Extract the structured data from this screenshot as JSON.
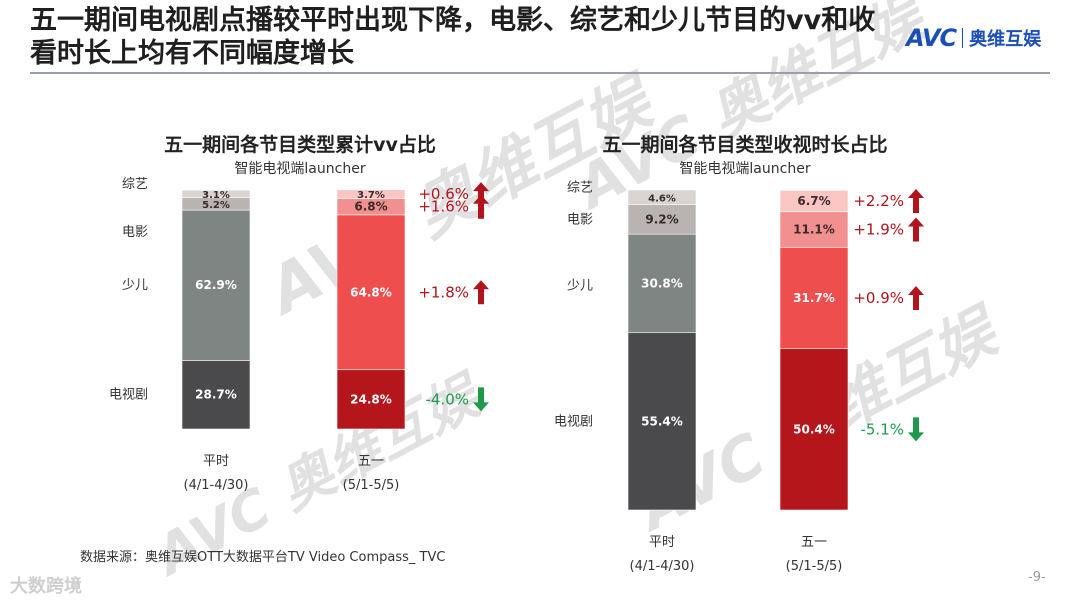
{
  "header": {
    "title_line1": "五一期间电视剧点播较平时出现下降，电影、综艺和少儿节目的vv和收",
    "title_line2": "看时长上均有不同幅度增长",
    "logo_mark": "AVC",
    "logo_text": "奥维互娱"
  },
  "watermark_text": "AVC 奥维互娱",
  "source": "数据来源：奥维互娱OTT大数据平台TV Video Compass_ TVC",
  "footer_brand": "大数跨境",
  "page_number": "-9-",
  "colors": {
    "baseline": {
      "电视剧": "#4a4a4c",
      "少儿": "#7f8583",
      "电影": "#b9b4b2",
      "综艺": "#d9d4d2"
    },
    "holiday": {
      "电视剧": "#b5161b",
      "少儿": "#ee4e4e",
      "电影": "#f1908f",
      "综艺": "#f9c6c4"
    },
    "up": "#b0141c",
    "down": "#1f9a4b"
  },
  "chart_data": [
    {
      "type": "bar",
      "stacked": true,
      "title": "五一期间各节目类型累计vv占比",
      "subtitle": "智能电视端launcher",
      "categories": [
        "平时",
        "五一"
      ],
      "category_sublabels": [
        "(4/1-4/30)",
        "(5/1-5/5)"
      ],
      "series": [
        {
          "name": "电视剧",
          "values": [
            28.7,
            24.8
          ],
          "labels": [
            "28.7%",
            "24.8%"
          ],
          "change": "-4.0%",
          "direction": "down"
        },
        {
          "name": "少儿",
          "values": [
            62.9,
            64.8
          ],
          "labels": [
            "62.9%",
            "64.8%"
          ],
          "change": "+1.8%",
          "direction": "up"
        },
        {
          "name": "电影",
          "values": [
            5.2,
            6.8
          ],
          "labels": [
            "5.2%",
            "6.8%"
          ],
          "change": "+1.6%",
          "direction": "up"
        },
        {
          "name": "综艺",
          "values": [
            3.1,
            3.7
          ],
          "labels": [
            "3.1%",
            "3.7%"
          ],
          "change": "+0.6%",
          "direction": "up"
        }
      ]
    },
    {
      "type": "bar",
      "stacked": true,
      "title": "五一期间各节目类型收视时长占比",
      "subtitle": "智能电视端launcher",
      "categories": [
        "平时",
        "五一"
      ],
      "category_sublabels": [
        "(4/1-4/30)",
        "(5/1-5/5)"
      ],
      "series": [
        {
          "name": "电视剧",
          "values": [
            55.4,
            50.4
          ],
          "labels": [
            "55.4%",
            "50.4%"
          ],
          "change": "-5.1%",
          "direction": "down"
        },
        {
          "name": "少儿",
          "values": [
            30.8,
            31.7
          ],
          "labels": [
            "30.8%",
            "31.7%"
          ],
          "change": "+0.9%",
          "direction": "up"
        },
        {
          "name": "电影",
          "values": [
            9.2,
            11.1
          ],
          "labels": [
            "9.2%",
            "11.1%"
          ],
          "change": "+1.9%",
          "direction": "up"
        },
        {
          "name": "综艺",
          "values": [
            4.6,
            6.7
          ],
          "labels": [
            "4.6%",
            "6.7%"
          ],
          "change": "+2.2%",
          "direction": "up"
        }
      ]
    }
  ]
}
